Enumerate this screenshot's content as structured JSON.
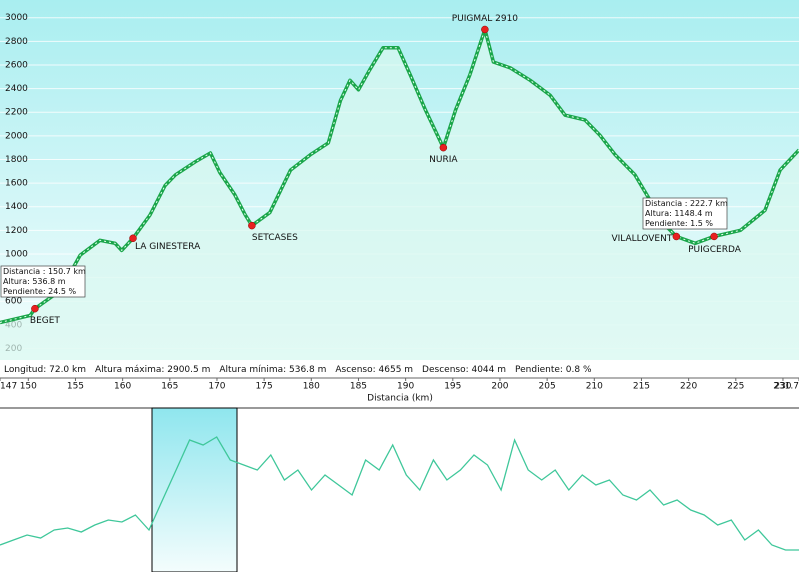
{
  "chart_data": [
    {
      "type": "line",
      "x_label": "Distancia  (km)",
      "x": [
        147,
        150.2,
        150.7,
        153.4,
        155.5,
        157.6,
        159.2,
        159.9,
        161.1,
        162.9,
        164.5,
        165.6,
        167.7,
        169.3,
        170.3,
        171.9,
        173,
        173.7,
        175.6,
        177.8,
        179.9,
        181.8,
        183.1,
        184.1,
        185,
        186.2,
        187.6,
        189.2,
        190.5,
        192.1,
        194,
        195.3,
        196.8,
        198.4,
        199.3,
        201.1,
        203.2,
        205.3,
        206.9,
        209,
        210.6,
        212.2,
        214.3,
        215.9,
        217.5,
        218.7,
        220.7,
        222.7,
        225.5,
        228.1,
        229.7,
        231.7
      ],
      "series": [
        {
          "name": "Altura",
          "color": "#1aa64a",
          "values": [
            420,
            480,
            536.8,
            690,
            990,
            1116,
            1090,
            1030,
            1133,
            1330,
            1580,
            1670,
            1780,
            1855,
            1690,
            1500,
            1330,
            1240,
            1350,
            1710,
            1840,
            1940,
            2300,
            2470,
            2390,
            2560,
            2745,
            2745,
            2515,
            2220,
            1900,
            2220,
            2515,
            2900.5,
            2625,
            2575,
            2470,
            2345,
            2175,
            2135,
            2005,
            1840,
            1670,
            1455,
            1245,
            1148,
            1090,
            1148.4,
            1200,
            1370,
            1710,
            1880
          ]
        }
      ],
      "xlim": [
        147,
        231.7
      ],
      "xticks": [
        147,
        150,
        155,
        160,
        165,
        170,
        175,
        180,
        185,
        190,
        195,
        200,
        205,
        210,
        215,
        220,
        225,
        230,
        231.7
      ],
      "ylim": [
        -50,
        3150
      ],
      "yticks": [
        200,
        400,
        600,
        800,
        1000,
        1200,
        1400,
        1600,
        1800,
        2000,
        2200,
        2400,
        2600,
        2800,
        3000
      ],
      "grid": true,
      "waypoints": [
        {
          "name": "BEGET",
          "x": 150.7,
          "value": 536.8
        },
        {
          "name": "LA GINESTERA",
          "x": 161.1,
          "value": 1133
        },
        {
          "name": "SETCASES",
          "x": 173.7,
          "value": 1240
        },
        {
          "name": "NURIA",
          "x": 194,
          "value": 1900
        },
        {
          "name": "PUIGMAL 2910",
          "x": 198.4,
          "value": 2900.5
        },
        {
          "name": "VILALLOVENT",
          "x": 218.7,
          "value": 1148
        },
        {
          "name": "PUIGCERDA",
          "x": 222.7,
          "value": 1148.4
        }
      ],
      "tooltips": [
        [
          "Distancia : 150.7 km",
          "Altura: 536.8 m",
          "Pendiente: 24.5 %"
        ],
        [
          "Distancia : 222.7 km",
          "Altura: 1148.4 m",
          "Pendiente: 1.5 %"
        ]
      ],
      "stats": [
        "Longitud: 72.0 km",
        "Altura máxima: 2900.5 m",
        "Altura mínima: 536.8 m",
        "Ascenso: 4655 m",
        "Descenso: 4044 m",
        "Pendiente: 0.8 %"
      ]
    },
    {
      "type": "overview",
      "values": [
        533,
        632,
        731,
        672,
        830,
        869,
        790,
        928,
        1027,
        988,
        1126,
        830,
        1422,
        2015,
        2607,
        2508,
        2667,
        2212,
        2113,
        2015,
        2311,
        1817,
        2015,
        1620,
        1916,
        1718,
        1521,
        2212,
        2015,
        2508,
        1916,
        1620,
        2212,
        1817,
        2015,
        2311,
        2113,
        1620,
        2607,
        2015,
        1817,
        2015,
        1620,
        1916,
        1718,
        1817,
        1521,
        1422,
        1620,
        1323,
        1422,
        1225,
        1126,
        928,
        1027,
        632,
        830,
        533,
        435,
        435
      ],
      "color": "#3fc79a",
      "ylim": [
        0,
        3200
      ]
    }
  ]
}
